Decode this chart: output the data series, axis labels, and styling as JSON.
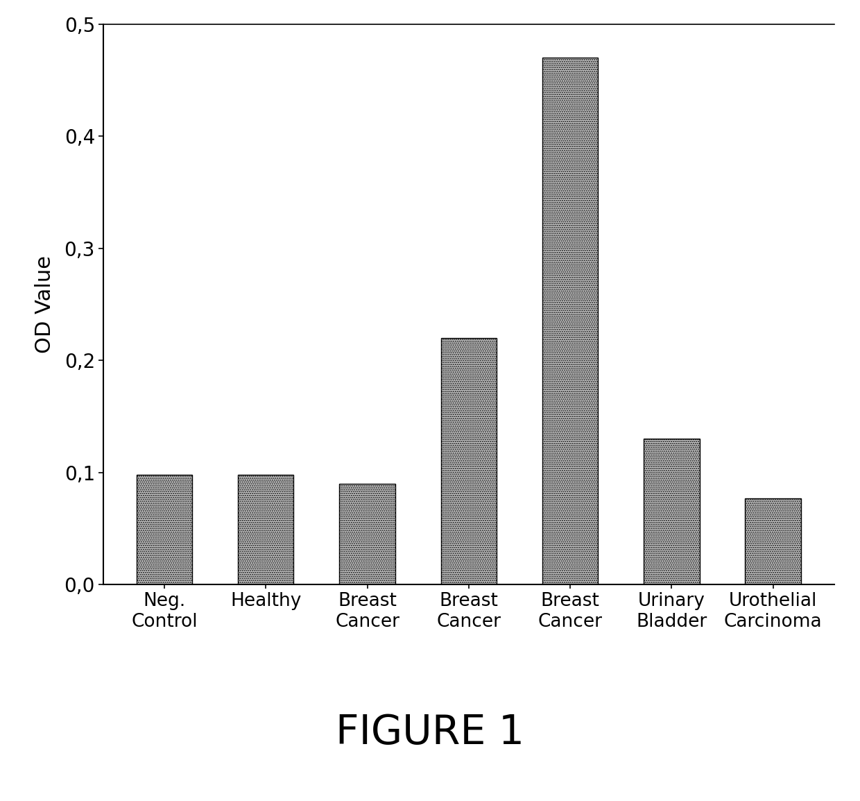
{
  "categories": [
    "Neg.\nControl",
    "Healthy",
    "Breast\nCancer",
    "Breast\nCancer",
    "Breast\nCancer",
    "Urinary\nBladder",
    "Urothelial\nCarcinoma"
  ],
  "values": [
    0.098,
    0.098,
    0.09,
    0.22,
    0.47,
    0.13,
    0.077
  ],
  "bar_color": "#d0d0d0",
  "bar_edgecolor": "#000000",
  "hatch": "......",
  "ylabel": "OD Value",
  "ylim": [
    0,
    0.5
  ],
  "yticks": [
    0.0,
    0.1,
    0.2,
    0.3,
    0.4,
    0.5
  ],
  "ytick_labels": [
    "0,0",
    "0,1",
    "0,2",
    "0,3",
    "0,4",
    "0,5"
  ],
  "figure_title": "FIGURE 1",
  "title_fontsize": 42,
  "ylabel_fontsize": 22,
  "tick_fontsize": 20,
  "xtick_fontsize": 19,
  "bar_width": 0.55,
  "background_color": "#ffffff"
}
